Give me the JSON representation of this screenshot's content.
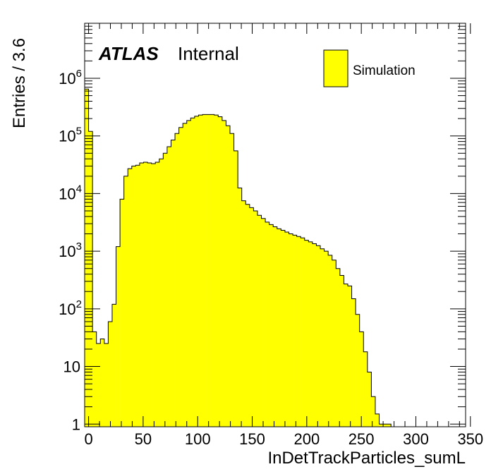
{
  "chart_data": {
    "type": "bar",
    "title": "",
    "xlabel": "InDetTrackParticles_sumL",
    "ylabel": "Entries / 3.6",
    "xlim": [
      -3.6,
      345.6
    ],
    "ylim": [
      0.9,
      9000000
    ],
    "yscale": "log",
    "grid": false,
    "bin_width": 3.6,
    "legend_position": "top-right",
    "x_ticks": [
      0,
      50,
      100,
      150,
      200,
      250,
      300,
      350
    ],
    "x_tick_labels": [
      "0",
      "50",
      "100",
      "150",
      "200",
      "250",
      "300",
      "350"
    ],
    "y_ticks": [
      1,
      10,
      100,
      1000,
      10000,
      100000,
      1000000
    ],
    "y_tick_labels": {
      "one": "1",
      "ten": "10",
      "base": "10",
      "exponents": [
        "2",
        "3",
        "4",
        "5",
        "6"
      ]
    },
    "fill_color": "#ffff00",
    "line_color": "#000000",
    "series": [
      {
        "name": "Simulation",
        "bin_low_edges": [
          -3.6,
          0.0,
          3.6,
          7.2,
          10.8,
          14.4,
          18.0,
          21.6,
          25.2,
          28.8,
          32.4,
          36.0,
          39.6,
          43.2,
          46.8,
          50.4,
          54.0,
          57.6,
          61.2,
          64.8,
          68.4,
          72.0,
          75.6,
          79.2,
          82.8,
          86.4,
          90.0,
          93.6,
          97.2,
          100.8,
          104.4,
          108.0,
          111.6,
          115.2,
          118.8,
          122.4,
          126.0,
          129.6,
          133.2,
          136.8,
          140.4,
          144.0,
          147.6,
          151.2,
          154.8,
          158.4,
          162.0,
          165.6,
          169.2,
          172.8,
          176.4,
          180.0,
          183.6,
          187.2,
          190.8,
          194.4,
          198.0,
          201.6,
          205.2,
          208.8,
          212.4,
          216.0,
          219.6,
          223.2,
          226.8,
          230.4,
          234.0,
          237.6,
          241.2,
          244.8,
          248.4,
          252.0,
          255.6,
          259.2,
          262.8,
          266.4,
          270.0,
          273.6,
          277.2,
          280.8,
          284.4,
          288.0,
          291.6,
          295.2,
          298.8,
          302.4,
          306.0,
          309.6,
          313.2,
          316.8,
          320.4,
          324.0
        ],
        "values": [
          650000,
          120000,
          40,
          25,
          30,
          25,
          60,
          120,
          1200,
          8000,
          20000,
          27000,
          30000,
          31000,
          34000,
          35000,
          34000,
          33000,
          35000,
          40000,
          50000,
          65000,
          85000,
          110000,
          140000,
          165000,
          185000,
          205000,
          220000,
          230000,
          235000,
          235000,
          235000,
          230000,
          215000,
          185000,
          150000,
          110000,
          55000,
          12500,
          7500,
          6500,
          5700,
          5000,
          4200,
          3700,
          3200,
          2900,
          2650,
          2450,
          2300,
          2150,
          2000,
          1900,
          1800,
          1700,
          1550,
          1450,
          1350,
          1250,
          1100,
          1000,
          850,
          700,
          500,
          380,
          270,
          250,
          150,
          80,
          40,
          18,
          8,
          3,
          1.5,
          1,
          1,
          1,
          0,
          0,
          0,
          0,
          0,
          0,
          0,
          0,
          0,
          0,
          0,
          0,
          0,
          0
        ]
      }
    ]
  },
  "labels": {
    "atlas": "ATLAS",
    "internal": "Internal",
    "legend_entry": "Simulation"
  }
}
